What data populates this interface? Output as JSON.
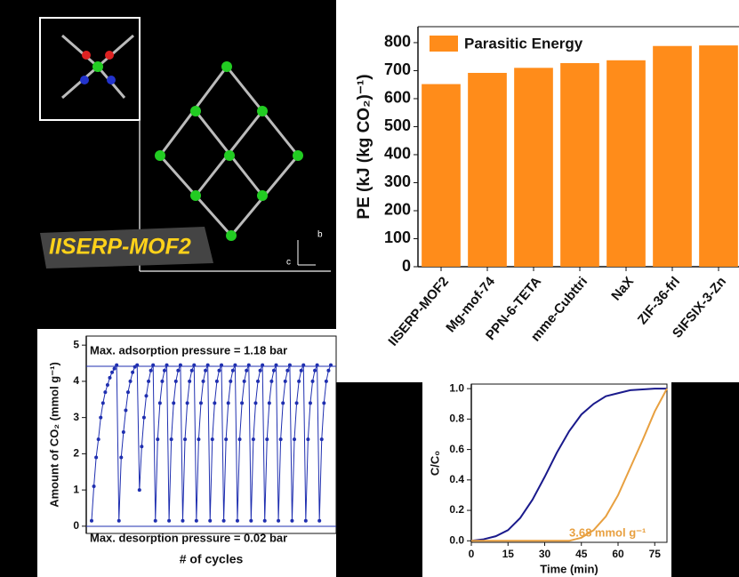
{
  "structure": {
    "label": "IISERP-MOF2",
    "axes": [
      "b",
      "c"
    ]
  },
  "chart_data": [
    {
      "type": "bar",
      "legend": "Parasitic Energy",
      "ylabel": "PE (kJ (kg CO₂)⁻¹)",
      "color": "#ff8c1a",
      "categories": [
        "IISERP-MOF2",
        "Mg-mof-74",
        "PPN-6-TETA",
        "mme-Cubttri",
        "NaX",
        "ZIF-36-frl",
        "SIFSIX-3-Zn"
      ],
      "values": [
        652,
        692,
        710,
        727,
        737,
        788,
        790
      ],
      "ylim": [
        0,
        857
      ],
      "yticks": [
        0,
        100,
        200,
        300,
        400,
        500,
        600,
        700,
        800
      ]
    },
    {
      "type": "line",
      "xlabel": "# of cycles",
      "ylabel": "Amount of CO₂ (mmol g⁻¹)",
      "color": "#1f2fb0",
      "annotations": [
        "Max. adsorption pressure = 1.18 bar",
        "Max. desorption pressure = 0.02 bar"
      ],
      "values": [
        0.15,
        1.1,
        1.9,
        2.4,
        3.0,
        3.4,
        3.7,
        3.9,
        4.1,
        4.25,
        4.35,
        4.45,
        0.15,
        1.9,
        2.6,
        3.2,
        3.7,
        4.0,
        4.25,
        4.4,
        4.45,
        1.0,
        2.2,
        3.0,
        3.6,
        4.0,
        4.3,
        4.45,
        0.15,
        2.4,
        3.4,
        4.0,
        4.3,
        4.45,
        0.15,
        2.4,
        3.4,
        4.0,
        4.3,
        4.45,
        0.15,
        2.4,
        3.4,
        4.0,
        4.3,
        4.45,
        0.15,
        2.4,
        3.4,
        4.0,
        4.3,
        4.45,
        0.15,
        2.4,
        3.4,
        4.0,
        4.3,
        4.45,
        0.15,
        2.4,
        3.4,
        4.0,
        4.3,
        4.45,
        0.15,
        2.4,
        3.4,
        4.0,
        4.3,
        4.45,
        0.15,
        2.4,
        3.4,
        4.0,
        4.3,
        4.45,
        0.15,
        2.4,
        3.4,
        4.0,
        4.3,
        4.45,
        0.15,
        2.4,
        3.4,
        4.0,
        4.3,
        4.45,
        0.15,
        2.4,
        3.4,
        4.0,
        4.3,
        4.45,
        0.15,
        2.4,
        3.4,
        4.0,
        4.3,
        4.45,
        0.15,
        2.4,
        3.4,
        4.0,
        4.3,
        4.45
      ],
      "ylim": [
        -0.2,
        5.25
      ],
      "yticks": [
        0,
        1,
        2,
        3,
        4,
        5
      ]
    },
    {
      "type": "xyline",
      "xlabel": "Time (min)",
      "ylabel": "C/C₀",
      "annotation": "3.68 mmol g⁻¹",
      "x": [
        0,
        5,
        10,
        15,
        20,
        25,
        30,
        35,
        40,
        45,
        50,
        55,
        60,
        65,
        70,
        75,
        80
      ],
      "series": [
        {
          "color": "#1a1a8c",
          "values": [
            0,
            0.01,
            0.03,
            0.07,
            0.15,
            0.27,
            0.42,
            0.58,
            0.72,
            0.83,
            0.9,
            0.95,
            0.97,
            0.99,
            0.995,
            1.0,
            1.0
          ]
        },
        {
          "color": "#e8a040",
          "values": [
            0,
            0,
            0,
            0,
            0,
            0,
            0,
            0,
            0,
            0.02,
            0.07,
            0.16,
            0.3,
            0.48,
            0.66,
            0.85,
            1.0
          ]
        }
      ],
      "xlim": [
        0,
        80
      ],
      "xticks": [
        0,
        15,
        30,
        45,
        60,
        75
      ],
      "ylim": [
        -0.01,
        1.03
      ],
      "yticks": [
        {
          "value": 0,
          "label": "0.0"
        },
        {
          "value": 0.2,
          "label": "0.2"
        },
        {
          "value": 0.4,
          "label": "0.4"
        },
        {
          "value": 0.6,
          "label": "0.6"
        },
        {
          "value": 0.8,
          "label": "0.8"
        },
        {
          "value": 1,
          "label": "1.0"
        }
      ]
    }
  ]
}
